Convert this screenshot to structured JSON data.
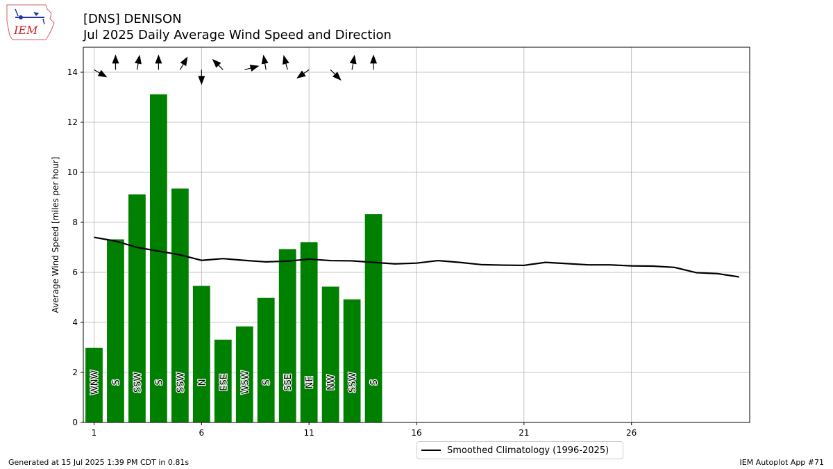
{
  "header": {
    "title_line1": "[DNS] DENISON",
    "title_line2": "Jul 2025 Daily Average Wind Speed and Direction"
  },
  "logo": {
    "text": "IEM",
    "icon": "iem-iowa-logo-icon"
  },
  "footer": {
    "generated": "Generated at 15 Jul 2025 1:39 PM CDT in 0.81s",
    "app": "IEM Autoplot App #71"
  },
  "legend": {
    "climatology_label": "Smoothed Climatology (1996-2025)"
  },
  "colors": {
    "bar": "#008000",
    "line": "#000000",
    "grid": "#b0b0b0",
    "arrow": "#000000"
  },
  "chart_data": {
    "type": "bar",
    "title": "[DNS] DENISON",
    "subtitle": "Jul 2025 Daily Average Wind Speed and Direction",
    "xlabel": "",
    "ylabel": "Average Wind Speed [miles per hour]",
    "xlim": [
      0.5,
      31.5
    ],
    "ylim": [
      0,
      15
    ],
    "xticks": [
      1,
      6,
      11,
      16,
      21,
      26
    ],
    "yticks": [
      0,
      2,
      4,
      6,
      8,
      10,
      12,
      14
    ],
    "grid": true,
    "legend_position": "below-right",
    "series": [
      {
        "kind": "bar",
        "days": [
          1,
          2,
          3,
          4,
          5,
          6,
          7,
          8,
          9,
          10,
          11,
          12,
          13,
          14
        ],
        "values": [
          2.98,
          7.32,
          9.12,
          13.12,
          9.35,
          5.46,
          3.31,
          3.84,
          4.98,
          6.93,
          7.21,
          5.43,
          4.92,
          8.33
        ],
        "direction_labels": [
          "WNW",
          "S",
          "SSW",
          "S",
          "SSW",
          "N",
          "ESE",
          "WSW",
          "S",
          "SSE",
          "NE",
          "NW",
          "SSW",
          "S"
        ],
        "direction_arrow_deg": [
          120,
          0,
          10,
          0,
          30,
          180,
          315,
          75,
          350,
          345,
          235,
          135,
          10,
          0
        ]
      },
      {
        "kind": "line",
        "name": "Smoothed Climatology (1996-2025)",
        "days": [
          1,
          2,
          3,
          4,
          5,
          6,
          7,
          8,
          9,
          10,
          11,
          12,
          13,
          14,
          15,
          16,
          17,
          18,
          19,
          20,
          21,
          22,
          23,
          24,
          25,
          26,
          27,
          28,
          29,
          30,
          31
        ],
        "values": [
          7.4,
          7.25,
          7.0,
          6.85,
          6.7,
          6.48,
          6.55,
          6.48,
          6.42,
          6.45,
          6.53,
          6.47,
          6.46,
          6.4,
          6.34,
          6.37,
          6.47,
          6.4,
          6.31,
          6.29,
          6.28,
          6.4,
          6.35,
          6.3,
          6.3,
          6.26,
          6.25,
          6.2,
          5.99,
          5.95,
          5.82
        ]
      }
    ]
  }
}
